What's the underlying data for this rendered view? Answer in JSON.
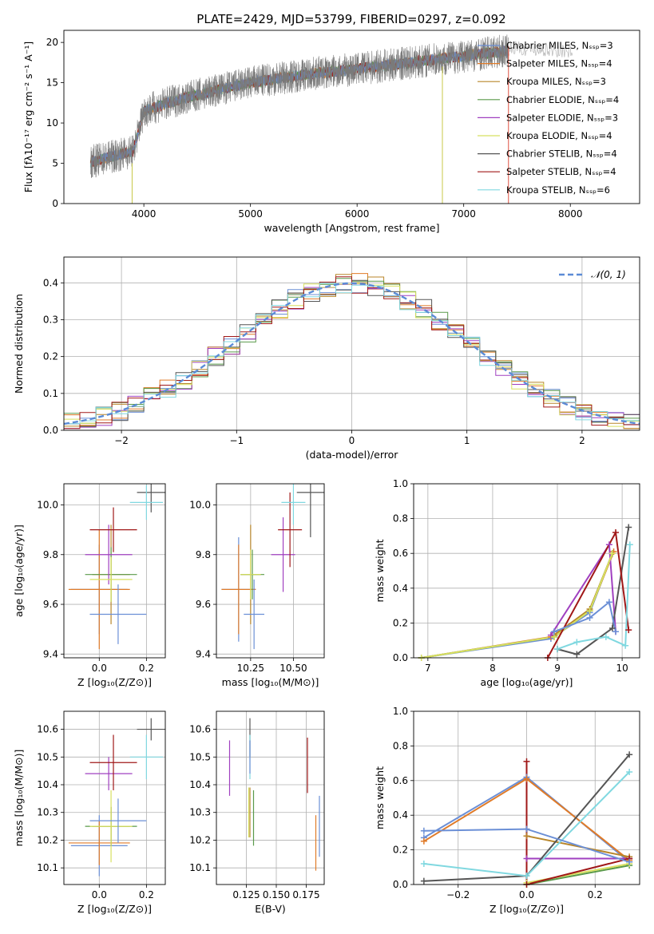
{
  "title": "PLATE=2429, MJD=53799, FIBERID=0297, z=0.092",
  "colors": [
    "#6b8fd6",
    "#e07b28",
    "#b8862a",
    "#5a9a4a",
    "#a040c0",
    "#d8e060",
    "#555555",
    "#a01818",
    "#80d8e0"
  ],
  "chart_data": [
    {
      "id": "spectrum",
      "type": "line",
      "xlabel": "wavelength [Angstrom, rest frame]",
      "ylabel": "Flux [fλ10⁻¹⁷ erg cm⁻² s⁻¹ A⁻¹]",
      "xlim": [
        3250,
        8650
      ],
      "ylim": [
        0,
        21.5
      ],
      "xticks": [
        4000,
        5000,
        6000,
        7000,
        8000
      ],
      "yticks": [
        0,
        5,
        10,
        15,
        20
      ],
      "data_range": [
        3500,
        7420
      ],
      "trend": {
        "x": [
          3500,
          3900,
          4000,
          4300,
          4600,
          5000,
          5500,
          6000,
          6500,
          7000,
          7420
        ],
        "y": [
          5.2,
          6.5,
          11.5,
          12.8,
          13.8,
          15.0,
          16.0,
          16.7,
          17.5,
          18.3,
          19.0
        ]
      },
      "legend": [
        "Chabrier MILES, Nₛₛₚ=3",
        "Salpeter MILES, Nₛₛₚ=4",
        "Kroupa MILES, Nₛₛₚ=3",
        "Chabrier ELODIE, Nₛₛₚ=4",
        "Salpeter ELODIE, Nₛₛₚ=3",
        "Kroupa ELODIE, Nₛₛₚ=4",
        "Chabrier STELIB, Nₛₛₚ=4",
        "Salpeter STELIB, Nₛₛₚ=4",
        "Kroupa STELIB, Nₛₛₚ=6"
      ],
      "grid": false
    },
    {
      "id": "histogram",
      "type": "bar",
      "xlabel": "(data-model)/error",
      "ylabel": "Normed distribution",
      "xlim": [
        -2.5,
        2.5
      ],
      "ylim": [
        0,
        0.47
      ],
      "xticks": [
        -2,
        -1,
        0,
        1,
        2
      ],
      "yticks": [
        0.0,
        0.1,
        0.2,
        0.3,
        0.4
      ],
      "legend_label": "𝒩(0, 1)",
      "legend_position": "top-right",
      "grid": true
    },
    {
      "id": "age-vs-Z",
      "type": "scatter",
      "xlabel": "Z [log₁₀(Z/Z⊙)]",
      "ylabel": "age  [log₁₀(age/yr)]",
      "xlim": [
        -0.15,
        0.28
      ],
      "ylim": [
        9.385,
        10.085
      ],
      "xticks": [
        0.0,
        0.2
      ],
      "yticks": [
        9.4,
        9.6,
        9.8,
        10.0
      ],
      "points": [
        {
          "x": 0.0,
          "y": 9.66,
          "ex": 0.12,
          "ey": 0.18
        },
        {
          "x": 0.0,
          "y": 9.66,
          "ex": 0.13,
          "ey": 0.24
        },
        {
          "x": 0.05,
          "y": 9.72,
          "ex": 0.08,
          "ey": 0.2
        },
        {
          "x": 0.05,
          "y": 9.72,
          "ex": 0.11,
          "ey": 0.11
        },
        {
          "x": 0.04,
          "y": 9.8,
          "ex": 0.1,
          "ey": 0.12
        },
        {
          "x": 0.05,
          "y": 9.7,
          "ex": 0.09,
          "ey": 0.09
        },
        {
          "x": 0.22,
          "y": 10.05,
          "ex": 0.06,
          "ey": 0.08
        },
        {
          "x": 0.06,
          "y": 9.9,
          "ex": 0.1,
          "ey": 0.09
        },
        {
          "x": 0.2,
          "y": 10.01,
          "ex": 0.07,
          "ey": 0.07
        },
        {
          "x": 0.08,
          "y": 9.56,
          "ex": 0.12,
          "ey": 0.12
        }
      ],
      "grid": true
    },
    {
      "id": "age-vs-mass",
      "type": "scatter",
      "xlabel": "mass [log₁₀(M/M⊙)]",
      "ylabel": "",
      "xlim": [
        10.05,
        10.68
      ],
      "ylim": [
        9.385,
        10.085
      ],
      "xticks": [
        10.25,
        10.5
      ],
      "yticks": [
        9.4,
        9.6,
        9.8,
        10.0
      ],
      "points": [
        {
          "x": 10.18,
          "y": 9.66,
          "ex": 0.1,
          "ey": 0.21
        },
        {
          "x": 10.18,
          "y": 9.66,
          "ex": 0.1,
          "ey": 0.18
        },
        {
          "x": 10.25,
          "y": 9.72,
          "ex": 0.06,
          "ey": 0.2
        },
        {
          "x": 10.26,
          "y": 9.72,
          "ex": 0.07,
          "ey": 0.1
        },
        {
          "x": 10.44,
          "y": 9.8,
          "ex": 0.07,
          "ey": 0.15
        },
        {
          "x": 10.25,
          "y": 9.72,
          "ex": 0.06,
          "ey": 0.1
        },
        {
          "x": 10.6,
          "y": 10.05,
          "ex": 0.08,
          "ey": 0.18
        },
        {
          "x": 10.48,
          "y": 9.9,
          "ex": 0.07,
          "ey": 0.15
        },
        {
          "x": 10.5,
          "y": 10.01,
          "ex": 0.07,
          "ey": 0.09
        },
        {
          "x": 10.27,
          "y": 9.56,
          "ex": 0.06,
          "ey": 0.14
        }
      ],
      "grid": true
    },
    {
      "id": "weight-vs-age",
      "type": "line",
      "xlabel": "age  [log₁₀(age/yr)]",
      "ylabel": "mass weight",
      "xlim": [
        6.78,
        10.27
      ],
      "ylim": [
        0,
        1
      ],
      "xticks": [
        7,
        8,
        9,
        10
      ],
      "yticks": [
        0.0,
        0.2,
        0.4,
        0.6,
        0.8,
        1.0
      ],
      "series": [
        {
          "x": [
            6.9,
            8.9,
            9.5,
            9.85
          ],
          "y": [
            0.0,
            0.11,
            0.26,
            0.6
          ]
        },
        {
          "x": [
            6.9,
            8.9,
            9.5,
            9.87
          ],
          "y": [
            0.0,
            0.12,
            0.27,
            0.61
          ]
        },
        {
          "x": [
            8.95,
            9.5,
            9.85
          ],
          "y": [
            0.13,
            0.28,
            0.6
          ]
        },
        {
          "x": [
            6.9,
            8.95,
            9.5,
            9.85
          ],
          "y": [
            0.0,
            0.12,
            0.27,
            0.6
          ]
        },
        {
          "x": [
            8.9,
            9.8,
            9.9
          ],
          "y": [
            0.13,
            0.65,
            0.15
          ]
        },
        {
          "x": [
            6.9,
            8.95,
            9.5,
            9.85
          ],
          "y": [
            0.0,
            0.12,
            0.27,
            0.6
          ]
        },
        {
          "x": [
            9.0,
            9.3,
            9.85,
            10.1
          ],
          "y": [
            0.05,
            0.02,
            0.17,
            0.75
          ]
        },
        {
          "x": [
            8.85,
            9.9,
            10.1
          ],
          "y": [
            0.0,
            0.72,
            0.16
          ]
        },
        {
          "x": [
            9.0,
            9.3,
            9.75,
            10.05,
            10.12
          ],
          "y": [
            0.05,
            0.09,
            0.12,
            0.07,
            0.65
          ]
        },
        {
          "x": [
            8.95,
            9.5,
            9.8,
            9.9
          ],
          "y": [
            0.15,
            0.23,
            0.32,
            0.15
          ]
        }
      ],
      "grid": true
    },
    {
      "id": "mass-vs-Z",
      "type": "scatter",
      "xlabel": "Z [log₁₀(Z/Z⊙)]",
      "ylabel": "mass [log₁₀(M/M⊙)]",
      "xlim": [
        -0.15,
        0.28
      ],
      "ylim": [
        10.04,
        10.665
      ],
      "xticks": [
        0.0,
        0.2
      ],
      "yticks": [
        10.1,
        10.2,
        10.3,
        10.4,
        10.5,
        10.6
      ],
      "points": [
        {
          "x": 0.0,
          "y": 10.18,
          "ex": 0.12,
          "ey": 0.11
        },
        {
          "x": 0.0,
          "y": 10.19,
          "ex": 0.13,
          "ey": 0.08
        },
        {
          "x": 0.05,
          "y": 10.25,
          "ex": 0.08,
          "ey": 0.07
        },
        {
          "x": 0.05,
          "y": 10.25,
          "ex": 0.11,
          "ey": 0.07
        },
        {
          "x": 0.04,
          "y": 10.44,
          "ex": 0.1,
          "ey": 0.06
        },
        {
          "x": 0.05,
          "y": 10.25,
          "ex": 0.09,
          "ey": 0.13
        },
        {
          "x": 0.22,
          "y": 10.6,
          "ex": 0.06,
          "ey": 0.04
        },
        {
          "x": 0.06,
          "y": 10.48,
          "ex": 0.1,
          "ey": 0.1
        },
        {
          "x": 0.2,
          "y": 10.5,
          "ex": 0.07,
          "ey": 0.08
        },
        {
          "x": 0.08,
          "y": 10.27,
          "ex": 0.12,
          "ey": 0.08
        }
      ],
      "grid": true
    },
    {
      "id": "mass-vs-EBV",
      "type": "scatter",
      "xlabel": "E(B-V)",
      "ylabel": "",
      "xlim": [
        0.1,
        0.19
      ],
      "ylim": [
        10.04,
        10.665
      ],
      "xticks": [
        0.125,
        0.15,
        0.175
      ],
      "xticklabels": [
        "0.125",
        "0.150",
        "0.175"
      ],
      "yticks": [
        10.1,
        10.2,
        10.3,
        10.4,
        10.5,
        10.6
      ],
      "points": [
        {
          "x": 0.186,
          "y": 10.25,
          "ey": 0.11
        },
        {
          "x": 0.183,
          "y": 10.19,
          "ey": 0.1
        },
        {
          "x": 0.128,
          "y": 10.3,
          "ey": 0.09
        },
        {
          "x": 0.131,
          "y": 10.28,
          "ey": 0.1
        },
        {
          "x": 0.111,
          "y": 10.46,
          "ey": 0.1
        },
        {
          "x": 0.127,
          "y": 10.3,
          "ey": 0.09
        },
        {
          "x": 0.128,
          "y": 10.57,
          "ey": 0.07
        },
        {
          "x": 0.176,
          "y": 10.47,
          "ey": 0.1
        },
        {
          "x": 0.128,
          "y": 10.5,
          "ey": 0.08
        },
        {
          "x": 0.128,
          "y": 10.5,
          "ey": 0.06
        }
      ],
      "grid": true
    },
    {
      "id": "weight-vs-Z",
      "type": "line",
      "xlabel": "Z [log₁₀(Z/Z⊙)]",
      "ylabel": "mass weight",
      "xlim": [
        -0.33,
        0.33
      ],
      "ylim": [
        0,
        1
      ],
      "xticks": [
        -0.2,
        0.0,
        0.2
      ],
      "yticks": [
        0.0,
        0.2,
        0.4,
        0.6,
        0.8,
        1.0
      ],
      "series": [
        {
          "x": [
            -0.3,
            0.0,
            0.3
          ],
          "y": [
            0.27,
            0.62,
            0.13
          ]
        },
        {
          "x": [
            -0.3,
            0.0,
            0.3
          ],
          "y": [
            0.25,
            0.61,
            0.14
          ]
        },
        {
          "x": [
            0.0,
            0.3
          ],
          "y": [
            0.28,
            0.16
          ]
        },
        {
          "x": [
            0.0,
            0.3
          ],
          "y": [
            0.0,
            0.11
          ]
        },
        {
          "x": [
            0.0,
            0.3
          ],
          "y": [
            0.15,
            0.15
          ]
        },
        {
          "x": [
            0.0,
            0.3
          ],
          "y": [
            0.01,
            0.12
          ]
        },
        {
          "x": [
            -0.3,
            0.0,
            0.3
          ],
          "y": [
            0.02,
            0.05,
            0.75
          ]
        },
        {
          "x": [
            0.0,
            0.0,
            0.3
          ],
          "y": [
            0.71,
            0.0,
            0.15
          ]
        },
        {
          "x": [
            -0.3,
            0.0,
            0.3
          ],
          "y": [
            0.12,
            0.05,
            0.65
          ]
        },
        {
          "x": [
            -0.3,
            0.0,
            0.3
          ],
          "y": [
            0.31,
            0.32,
            0.13
          ]
        }
      ],
      "grid": true
    }
  ]
}
